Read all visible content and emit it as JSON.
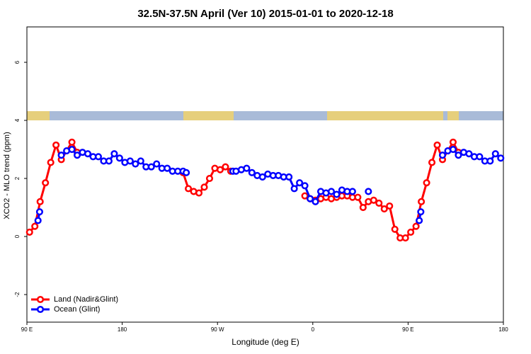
{
  "chart_data": {
    "type": "line",
    "title": "32.5N-37.5N April (Ver 10)   2015-01-01 to 2020-12-18",
    "xlabel": "Longitude (deg E)",
    "ylabel": "XCO2 - MLO trend (ppm)",
    "xlim": [
      90,
      540
    ],
    "xticks": [
      {
        "value": 90,
        "label": "90 E"
      },
      180,
      {
        "value": 270,
        "label": "90 W"
      },
      {
        "value": 360,
        "label": "0"
      },
      {
        "value": 450,
        "label": "90 E"
      },
      {
        "value": 540,
        "label": "180"
      }
    ],
    "ylim": [
      -2.95,
      7.22
    ],
    "yticks": [
      -2,
      0,
      2,
      4,
      6
    ],
    "legend": "bottom-left",
    "series": [
      {
        "name": "Land (Nadir&Glint)",
        "color": "#ff0000",
        "x": [
          92.5,
          97.5,
          102.5,
          107.5,
          112.5,
          117.5,
          122.5,
          132.5,
          137.5,
          null,
          237.5,
          242.5,
          247.5,
          252.5,
          257.5,
          262.5,
          267.5,
          272.5,
          277.5,
          282.5,
          null,
          352.5,
          357.5,
          362.5,
          367.5,
          372.5,
          377.5,
          382.5,
          387.5,
          392.5,
          397.5,
          402.5,
          407.5,
          412.5,
          417.5,
          422.5,
          427.5,
          432.5,
          437.5,
          442.5,
          447.5,
          452.5,
          457.5,
          462.5,
          467.5,
          472.5,
          477.5,
          482.5,
          492.5,
          497.5
        ],
        "values": [
          0.15,
          0.35,
          1.2,
          1.85,
          2.55,
          3.15,
          2.65,
          3.25,
          2.9,
          null,
          2.2,
          1.65,
          1.55,
          1.5,
          1.7,
          2.0,
          2.35,
          2.3,
          2.4,
          2.25,
          null,
          1.4,
          1.3,
          1.25,
          1.3,
          1.35,
          1.3,
          1.35,
          1.4,
          1.4,
          1.35,
          1.35,
          1.0,
          1.2,
          1.25,
          1.15,
          0.95,
          1.05,
          0.25,
          -0.05,
          -0.05,
          0.15,
          0.35,
          1.2,
          1.85,
          2.55,
          3.15,
          2.65,
          3.25,
          2.9
        ]
      },
      {
        "name": "Ocean (Glint)",
        "color": "#0000ff",
        "x": [
          100.5,
          102,
          null,
          122.5,
          127.5,
          132.5,
          137.5,
          142.5,
          147.5,
          152.5,
          157.5,
          162.5,
          167.5,
          172.5,
          177.5,
          182.5,
          187.5,
          192.5,
          197.5,
          202.5,
          207.5,
          212.5,
          217.5,
          222.5,
          227.5,
          232.5,
          237.5,
          240.5,
          null,
          284.5,
          287.5,
          292.5,
          297.5,
          302.5,
          307.5,
          312.5,
          317.5,
          322.5,
          327.5,
          332.5,
          337.5,
          342.5,
          347.5,
          352.5,
          357.5,
          362.5,
          367.5,
          372.5,
          377.5,
          382.5,
          387.5,
          392.5,
          397.5,
          null,
          412.5,
          null,
          460.5,
          462,
          null,
          482.5,
          487.5,
          492.5,
          497.5,
          502.5,
          507.5,
          512.5,
          517.5,
          522.5,
          527.5,
          532.5,
          537.5
        ],
        "values": [
          0.55,
          0.85,
          null,
          2.8,
          2.95,
          3.0,
          2.8,
          2.9,
          2.85,
          2.75,
          2.75,
          2.6,
          2.6,
          2.85,
          2.7,
          2.55,
          2.6,
          2.5,
          2.6,
          2.4,
          2.4,
          2.5,
          2.35,
          2.35,
          2.25,
          2.25,
          2.25,
          2.2,
          null,
          2.25,
          2.25,
          2.3,
          2.35,
          2.2,
          2.1,
          2.05,
          2.15,
          2.1,
          2.1,
          2.05,
          2.05,
          1.65,
          1.85,
          1.75,
          1.3,
          1.2,
          1.55,
          1.5,
          1.55,
          1.45,
          1.6,
          1.55,
          1.55,
          null,
          1.55,
          null,
          0.55,
          0.85,
          null,
          2.8,
          2.95,
          3.0,
          2.8,
          2.9,
          2.85,
          2.75,
          2.75,
          2.6,
          2.6,
          2.85,
          2.7
        ]
      }
    ]
  }
}
